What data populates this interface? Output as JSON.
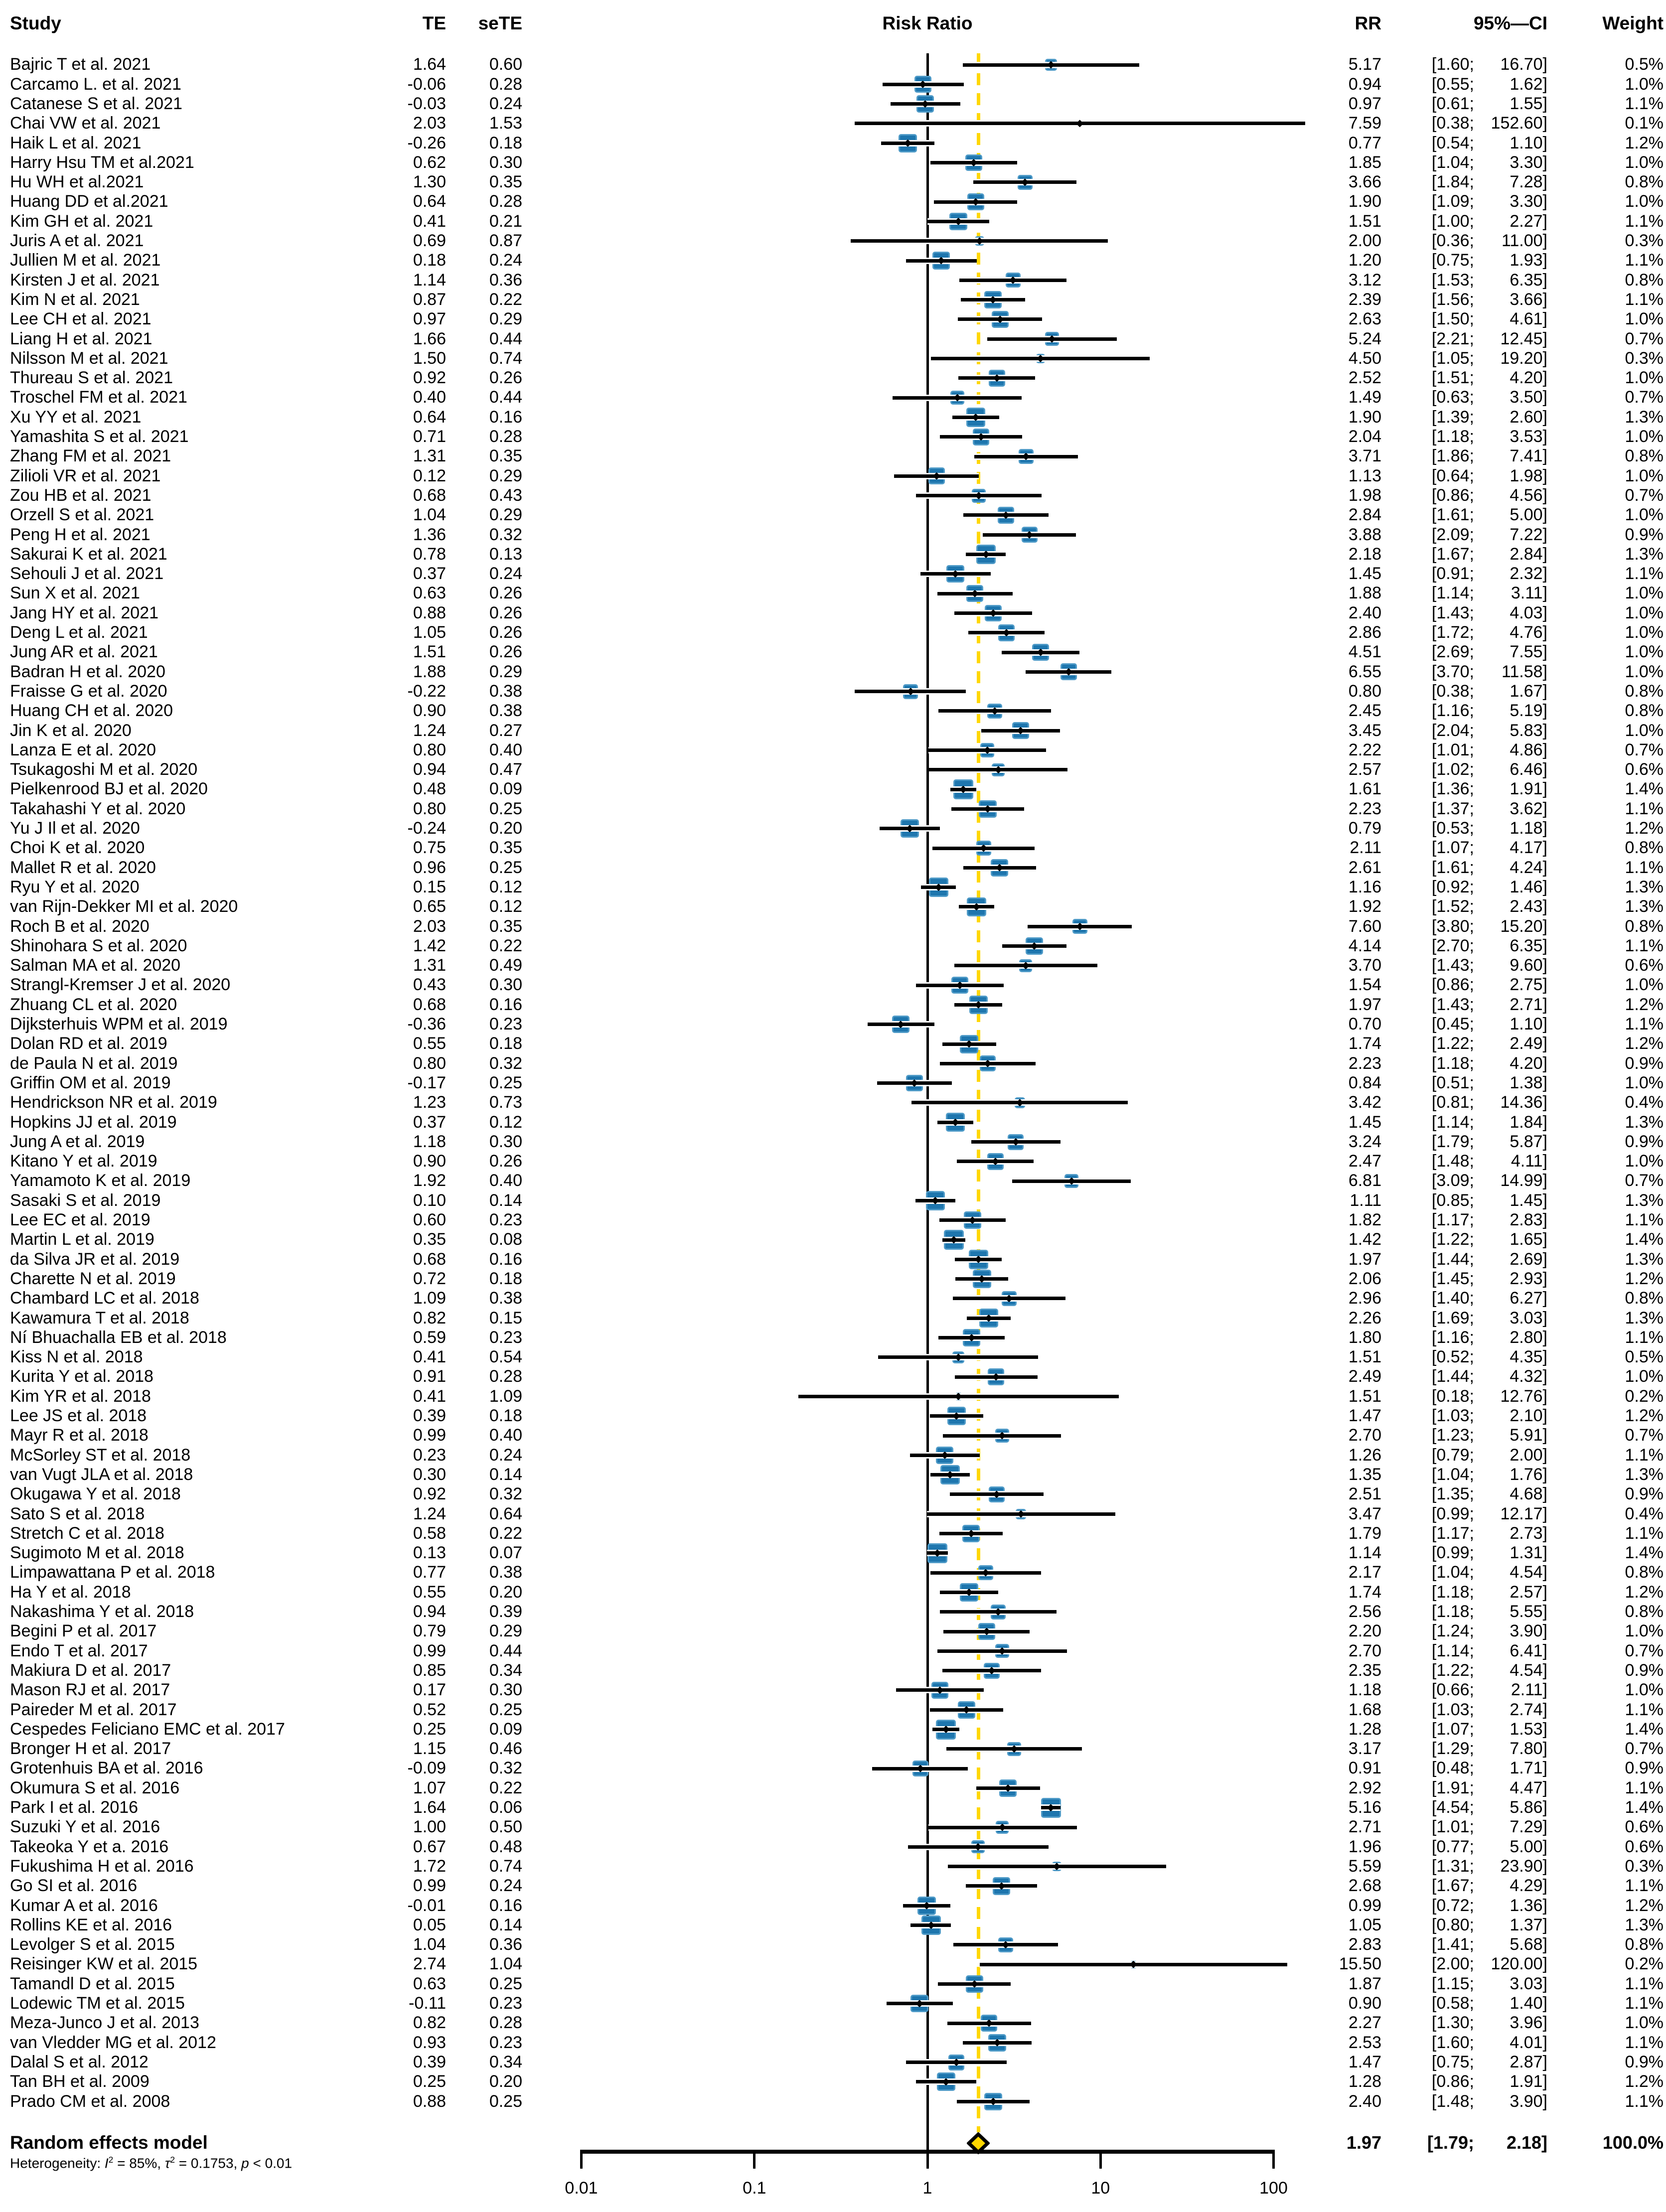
{
  "header": {
    "study": "Study",
    "te": "TE",
    "sete": "seTE",
    "plot": "Risk Ratio",
    "rr": "RR",
    "ci": "95%—CI",
    "weight": "Weight"
  },
  "summary": {
    "label": "Random effects model",
    "rr": "1.97",
    "ci_low": 1.79,
    "ci_high": 2.18,
    "weight": "100.0%",
    "rr_value": 1.97
  },
  "heterogeneity": [
    {
      "t": "Heterogeneity: "
    },
    {
      "t": "I",
      "i": true
    },
    {
      "t": "2",
      "s": true
    },
    {
      "t": " = 85%, "
    },
    {
      "t": "τ",
      "i": true
    },
    {
      "t": "2",
      "s": true
    },
    {
      "t": " = 0.1753, "
    },
    {
      "t": "p",
      "i": true
    },
    {
      "t": " < 0.01"
    }
  ],
  "colors": {
    "square": "#1E76AE",
    "square_border": "#4E9AC7",
    "ci_line": "#000000",
    "ref_line": "#000000",
    "pooled_line": "#FFD700",
    "diamond_fill": "#FFD700",
    "diamond_stroke": "#000000"
  },
  "chart_data": {
    "type": "forest",
    "title": "Risk Ratio",
    "x_axis": {
      "scale": "log10",
      "ticks": [
        0.01,
        0.1,
        1,
        10,
        100
      ],
      "tick_labels": [
        "0.01",
        "0.1",
        "1",
        "10",
        "100"
      ],
      "reference_value": 1,
      "pooled_value": 1.97
    },
    "studies": [
      {
        "n": "Bajric T et al. 2021",
        "te": 1.64,
        "se": 0.6,
        "rr": 5.17,
        "lo": 1.6,
        "hi": 16.7,
        "w": 0.5
      },
      {
        "n": "Carcamo L. et al. 2021",
        "te": -0.06,
        "se": 0.28,
        "rr": 0.94,
        "lo": 0.55,
        "hi": 1.62,
        "w": 1.0
      },
      {
        "n": "Catanese S et al. 2021",
        "te": -0.03,
        "se": 0.24,
        "rr": 0.97,
        "lo": 0.61,
        "hi": 1.55,
        "w": 1.1
      },
      {
        "n": "Chai VW et al. 2021",
        "te": 2.03,
        "se": 1.53,
        "rr": 7.59,
        "lo": 0.38,
        "hi": 152.6,
        "w": 0.1
      },
      {
        "n": "Haik L et al. 2021",
        "te": -0.26,
        "se": 0.18,
        "rr": 0.77,
        "lo": 0.54,
        "hi": 1.1,
        "w": 1.2
      },
      {
        "n": "Harry Hsu TM et al.2021",
        "te": 0.62,
        "se": 0.3,
        "rr": 1.85,
        "lo": 1.04,
        "hi": 3.3,
        "w": 1.0
      },
      {
        "n": "Hu WH et al.2021",
        "te": 1.3,
        "se": 0.35,
        "rr": 3.66,
        "lo": 1.84,
        "hi": 7.28,
        "w": 0.8
      },
      {
        "n": "Huang DD et al.2021",
        "te": 0.64,
        "se": 0.28,
        "rr": 1.9,
        "lo": 1.09,
        "hi": 3.3,
        "w": 1.0
      },
      {
        "n": "Kim GH et al. 2021",
        "te": 0.41,
        "se": 0.21,
        "rr": 1.51,
        "lo": 1.0,
        "hi": 2.27,
        "w": 1.1
      },
      {
        "n": "Juris A et al. 2021",
        "te": 0.69,
        "se": 0.87,
        "rr": 2.0,
        "lo": 0.36,
        "hi": 11.0,
        "w": 0.3
      },
      {
        "n": "Jullien M et al. 2021",
        "te": 0.18,
        "se": 0.24,
        "rr": 1.2,
        "lo": 0.75,
        "hi": 1.93,
        "w": 1.1
      },
      {
        "n": "Kirsten J et al. 2021",
        "te": 1.14,
        "se": 0.36,
        "rr": 3.12,
        "lo": 1.53,
        "hi": 6.35,
        "w": 0.8
      },
      {
        "n": "Kim N et al. 2021",
        "te": 0.87,
        "se": 0.22,
        "rr": 2.39,
        "lo": 1.56,
        "hi": 3.66,
        "w": 1.1
      },
      {
        "n": "Lee CH et al. 2021",
        "te": 0.97,
        "se": 0.29,
        "rr": 2.63,
        "lo": 1.5,
        "hi": 4.61,
        "w": 1.0
      },
      {
        "n": "Liang H et al. 2021",
        "te": 1.66,
        "se": 0.44,
        "rr": 5.24,
        "lo": 2.21,
        "hi": 12.45,
        "w": 0.7
      },
      {
        "n": "Nilsson M et al. 2021",
        "te": 1.5,
        "se": 0.74,
        "rr": 4.5,
        "lo": 1.05,
        "hi": 19.2,
        "w": 0.3
      },
      {
        "n": "Thureau S et al. 2021",
        "te": 0.92,
        "se": 0.26,
        "rr": 2.52,
        "lo": 1.51,
        "hi": 4.2,
        "w": 1.0
      },
      {
        "n": "Troschel FM et al. 2021",
        "te": 0.4,
        "se": 0.44,
        "rr": 1.49,
        "lo": 0.63,
        "hi": 3.5,
        "w": 0.7
      },
      {
        "n": "Xu YY et al. 2021",
        "te": 0.64,
        "se": 0.16,
        "rr": 1.9,
        "lo": 1.39,
        "hi": 2.6,
        "w": 1.3
      },
      {
        "n": "Yamashita S et al. 2021",
        "te": 0.71,
        "se": 0.28,
        "rr": 2.04,
        "lo": 1.18,
        "hi": 3.53,
        "w": 1.0
      },
      {
        "n": "Zhang FM et al. 2021",
        "te": 1.31,
        "se": 0.35,
        "rr": 3.71,
        "lo": 1.86,
        "hi": 7.41,
        "w": 0.8
      },
      {
        "n": "Zilioli VR et al. 2021",
        "te": 0.12,
        "se": 0.29,
        "rr": 1.13,
        "lo": 0.64,
        "hi": 1.98,
        "w": 1.0
      },
      {
        "n": "Zou HB et al. 2021",
        "te": 0.68,
        "se": 0.43,
        "rr": 1.98,
        "lo": 0.86,
        "hi": 4.56,
        "w": 0.7
      },
      {
        "n": "Orzell S et al. 2021",
        "te": 1.04,
        "se": 0.29,
        "rr": 2.84,
        "lo": 1.61,
        "hi": 5.0,
        "w": 1.0
      },
      {
        "n": "Peng H et al. 2021",
        "te": 1.36,
        "se": 0.32,
        "rr": 3.88,
        "lo": 2.09,
        "hi": 7.22,
        "w": 0.9
      },
      {
        "n": "Sakurai K et al. 2021",
        "te": 0.78,
        "se": 0.13,
        "rr": 2.18,
        "lo": 1.67,
        "hi": 2.84,
        "w": 1.3
      },
      {
        "n": "Sehouli J et al. 2021",
        "te": 0.37,
        "se": 0.24,
        "rr": 1.45,
        "lo": 0.91,
        "hi": 2.32,
        "w": 1.1
      },
      {
        "n": "Sun X et al. 2021",
        "te": 0.63,
        "se": 0.26,
        "rr": 1.88,
        "lo": 1.14,
        "hi": 3.11,
        "w": 1.0
      },
      {
        "n": "Jang HY et al. 2021",
        "te": 0.88,
        "se": 0.26,
        "rr": 2.4,
        "lo": 1.43,
        "hi": 4.03,
        "w": 1.0
      },
      {
        "n": "Deng L et al. 2021",
        "te": 1.05,
        "se": 0.26,
        "rr": 2.86,
        "lo": 1.72,
        "hi": 4.76,
        "w": 1.0
      },
      {
        "n": "Jung AR et al. 2021",
        "te": 1.51,
        "se": 0.26,
        "rr": 4.51,
        "lo": 2.69,
        "hi": 7.55,
        "w": 1.0
      },
      {
        "n": "Badran H et al. 2020",
        "te": 1.88,
        "se": 0.29,
        "rr": 6.55,
        "lo": 3.7,
        "hi": 11.58,
        "w": 1.0
      },
      {
        "n": "Fraisse G et al. 2020",
        "te": -0.22,
        "se": 0.38,
        "rr": 0.8,
        "lo": 0.38,
        "hi": 1.67,
        "w": 0.8
      },
      {
        "n": "Huang CH et al. 2020",
        "te": 0.9,
        "se": 0.38,
        "rr": 2.45,
        "lo": 1.16,
        "hi": 5.19,
        "w": 0.8
      },
      {
        "n": "Jin K et al. 2020",
        "te": 1.24,
        "se": 0.27,
        "rr": 3.45,
        "lo": 2.04,
        "hi": 5.83,
        "w": 1.0
      },
      {
        "n": "Lanza E et al. 2020",
        "te": 0.8,
        "se": 0.4,
        "rr": 2.22,
        "lo": 1.01,
        "hi": 4.86,
        "w": 0.7
      },
      {
        "n": "Tsukagoshi M et al. 2020",
        "te": 0.94,
        "se": 0.47,
        "rr": 2.57,
        "lo": 1.02,
        "hi": 6.46,
        "w": 0.6
      },
      {
        "n": "Pielkenrood BJ et al. 2020",
        "te": 0.48,
        "se": 0.09,
        "rr": 1.61,
        "lo": 1.36,
        "hi": 1.91,
        "w": 1.4
      },
      {
        "n": "Takahashi Y et al. 2020",
        "te": 0.8,
        "se": 0.25,
        "rr": 2.23,
        "lo": 1.37,
        "hi": 3.62,
        "w": 1.1
      },
      {
        "n": "Yu J Il et al. 2020",
        "te": -0.24,
        "se": 0.2,
        "rr": 0.79,
        "lo": 0.53,
        "hi": 1.18,
        "w": 1.2
      },
      {
        "n": "Choi K et al. 2020",
        "te": 0.75,
        "se": 0.35,
        "rr": 2.11,
        "lo": 1.07,
        "hi": 4.17,
        "w": 0.8
      },
      {
        "n": "Mallet R et al. 2020",
        "te": 0.96,
        "se": 0.25,
        "rr": 2.61,
        "lo": 1.61,
        "hi": 4.24,
        "w": 1.1
      },
      {
        "n": "Ryu Y et al. 2020",
        "te": 0.15,
        "se": 0.12,
        "rr": 1.16,
        "lo": 0.92,
        "hi": 1.46,
        "w": 1.3
      },
      {
        "n": "van Rijn-Dekker MI et al. 2020",
        "te": 0.65,
        "se": 0.12,
        "rr": 1.92,
        "lo": 1.52,
        "hi": 2.43,
        "w": 1.3
      },
      {
        "n": "Roch B et al. 2020",
        "te": 2.03,
        "se": 0.35,
        "rr": 7.6,
        "lo": 3.8,
        "hi": 15.2,
        "w": 0.8
      },
      {
        "n": "Shinohara S et al. 2020",
        "te": 1.42,
        "se": 0.22,
        "rr": 4.14,
        "lo": 2.7,
        "hi": 6.35,
        "w": 1.1
      },
      {
        "n": "Salman MA et al. 2020",
        "te": 1.31,
        "se": 0.49,
        "rr": 3.7,
        "lo": 1.43,
        "hi": 9.6,
        "w": 0.6
      },
      {
        "n": "Strangl-Kremser J et al. 2020",
        "te": 0.43,
        "se": 0.3,
        "rr": 1.54,
        "lo": 0.86,
        "hi": 2.75,
        "w": 1.0
      },
      {
        "n": "Zhuang CL et al. 2020",
        "te": 0.68,
        "se": 0.16,
        "rr": 1.97,
        "lo": 1.43,
        "hi": 2.71,
        "w": 1.2
      },
      {
        "n": "Dijksterhuis WPM et al. 2019",
        "te": -0.36,
        "se": 0.23,
        "rr": 0.7,
        "lo": 0.45,
        "hi": 1.1,
        "w": 1.1
      },
      {
        "n": "Dolan RD et al. 2019",
        "te": 0.55,
        "se": 0.18,
        "rr": 1.74,
        "lo": 1.22,
        "hi": 2.49,
        "w": 1.2
      },
      {
        "n": "de Paula N et al. 2019",
        "te": 0.8,
        "se": 0.32,
        "rr": 2.23,
        "lo": 1.18,
        "hi": 4.2,
        "w": 0.9
      },
      {
        "n": "Griffin OM et al. 2019",
        "te": -0.17,
        "se": 0.25,
        "rr": 0.84,
        "lo": 0.51,
        "hi": 1.38,
        "w": 1.0
      },
      {
        "n": "Hendrickson NR et al. 2019",
        "te": 1.23,
        "se": 0.73,
        "rr": 3.42,
        "lo": 0.81,
        "hi": 14.36,
        "w": 0.4
      },
      {
        "n": "Hopkins JJ et al. 2019",
        "te": 0.37,
        "se": 0.12,
        "rr": 1.45,
        "lo": 1.14,
        "hi": 1.84,
        "w": 1.3
      },
      {
        "n": "Jung A et al. 2019",
        "te": 1.18,
        "se": 0.3,
        "rr": 3.24,
        "lo": 1.79,
        "hi": 5.87,
        "w": 0.9
      },
      {
        "n": "Kitano Y et al. 2019",
        "te": 0.9,
        "se": 0.26,
        "rr": 2.47,
        "lo": 1.48,
        "hi": 4.11,
        "w": 1.0
      },
      {
        "n": "Yamamoto K et al. 2019",
        "te": 1.92,
        "se": 0.4,
        "rr": 6.81,
        "lo": 3.09,
        "hi": 14.99,
        "w": 0.7
      },
      {
        "n": "Sasaki S et al. 2019",
        "te": 0.1,
        "se": 0.14,
        "rr": 1.11,
        "lo": 0.85,
        "hi": 1.45,
        "w": 1.3
      },
      {
        "n": "Lee EC et al. 2019",
        "te": 0.6,
        "se": 0.23,
        "rr": 1.82,
        "lo": 1.17,
        "hi": 2.83,
        "w": 1.1
      },
      {
        "n": "Martin L et al. 2019",
        "te": 0.35,
        "se": 0.08,
        "rr": 1.42,
        "lo": 1.22,
        "hi": 1.65,
        "w": 1.4
      },
      {
        "n": "da Silva JR et al. 2019",
        "te": 0.68,
        "se": 0.16,
        "rr": 1.97,
        "lo": 1.44,
        "hi": 2.69,
        "w": 1.3
      },
      {
        "n": "Charette N et al. 2019",
        "te": 0.72,
        "se": 0.18,
        "rr": 2.06,
        "lo": 1.45,
        "hi": 2.93,
        "w": 1.2
      },
      {
        "n": "Chambard LC et al. 2018",
        "te": 1.09,
        "se": 0.38,
        "rr": 2.96,
        "lo": 1.4,
        "hi": 6.27,
        "w": 0.8
      },
      {
        "n": "Kawamura T et al. 2018",
        "te": 0.82,
        "se": 0.15,
        "rr": 2.26,
        "lo": 1.69,
        "hi": 3.03,
        "w": 1.3
      },
      {
        "n": "Ní Bhuachalla EB et al. 2018",
        "te": 0.59,
        "se": 0.23,
        "rr": 1.8,
        "lo": 1.16,
        "hi": 2.8,
        "w": 1.1
      },
      {
        "n": "Kiss N et al. 2018",
        "te": 0.41,
        "se": 0.54,
        "rr": 1.51,
        "lo": 0.52,
        "hi": 4.35,
        "w": 0.5
      },
      {
        "n": "Kurita Y et al. 2018",
        "te": 0.91,
        "se": 0.28,
        "rr": 2.49,
        "lo": 1.44,
        "hi": 4.32,
        "w": 1.0
      },
      {
        "n": "Kim YR et al. 2018",
        "te": 0.41,
        "se": 1.09,
        "rr": 1.51,
        "lo": 0.18,
        "hi": 12.76,
        "w": 0.2
      },
      {
        "n": "Lee JS et al. 2018",
        "te": 0.39,
        "se": 0.18,
        "rr": 1.47,
        "lo": 1.03,
        "hi": 2.1,
        "w": 1.2
      },
      {
        "n": "Mayr R et al. 2018",
        "te": 0.99,
        "se": 0.4,
        "rr": 2.7,
        "lo": 1.23,
        "hi": 5.91,
        "w": 0.7
      },
      {
        "n": "McSorley ST et al. 2018",
        "te": 0.23,
        "se": 0.24,
        "rr": 1.26,
        "lo": 0.79,
        "hi": 2.0,
        "w": 1.1
      },
      {
        "n": "van Vugt JLA et al. 2018",
        "te": 0.3,
        "se": 0.14,
        "rr": 1.35,
        "lo": 1.04,
        "hi": 1.76,
        "w": 1.3
      },
      {
        "n": "Okugawa Y et al. 2018",
        "te": 0.92,
        "se": 0.32,
        "rr": 2.51,
        "lo": 1.35,
        "hi": 4.68,
        "w": 0.9
      },
      {
        "n": "Sato S et al. 2018",
        "te": 1.24,
        "se": 0.64,
        "rr": 3.47,
        "lo": 0.99,
        "hi": 12.17,
        "w": 0.4
      },
      {
        "n": "Stretch C et al. 2018",
        "te": 0.58,
        "se": 0.22,
        "rr": 1.79,
        "lo": 1.17,
        "hi": 2.73,
        "w": 1.1
      },
      {
        "n": "Sugimoto M et al. 2018",
        "te": 0.13,
        "se": 0.07,
        "rr": 1.14,
        "lo": 0.99,
        "hi": 1.31,
        "w": 1.4
      },
      {
        "n": "Limpawattana P et al. 2018",
        "te": 0.77,
        "se": 0.38,
        "rr": 2.17,
        "lo": 1.04,
        "hi": 4.54,
        "w": 0.8
      },
      {
        "n": "Ha Y et al. 2018",
        "te": 0.55,
        "se": 0.2,
        "rr": 1.74,
        "lo": 1.18,
        "hi": 2.57,
        "w": 1.2
      },
      {
        "n": "Nakashima Y et al. 2018",
        "te": 0.94,
        "se": 0.39,
        "rr": 2.56,
        "lo": 1.18,
        "hi": 5.55,
        "w": 0.8
      },
      {
        "n": "Begini P et al. 2017",
        "te": 0.79,
        "se": 0.29,
        "rr": 2.2,
        "lo": 1.24,
        "hi": 3.9,
        "w": 1.0
      },
      {
        "n": "Endo T et al. 2017",
        "te": 0.99,
        "se": 0.44,
        "rr": 2.7,
        "lo": 1.14,
        "hi": 6.41,
        "w": 0.7
      },
      {
        "n": "Makiura D et al. 2017",
        "te": 0.85,
        "se": 0.34,
        "rr": 2.35,
        "lo": 1.22,
        "hi": 4.54,
        "w": 0.9
      },
      {
        "n": "Mason RJ et al. 2017",
        "te": 0.17,
        "se": 0.3,
        "rr": 1.18,
        "lo": 0.66,
        "hi": 2.11,
        "w": 1.0
      },
      {
        "n": "Paireder M et al. 2017",
        "te": 0.52,
        "se": 0.25,
        "rr": 1.68,
        "lo": 1.03,
        "hi": 2.74,
        "w": 1.1
      },
      {
        "n": "Cespedes Feliciano EMC et al. 2017",
        "te": 0.25,
        "se": 0.09,
        "rr": 1.28,
        "lo": 1.07,
        "hi": 1.53,
        "w": 1.4
      },
      {
        "n": "Bronger H et al. 2017",
        "te": 1.15,
        "se": 0.46,
        "rr": 3.17,
        "lo": 1.29,
        "hi": 7.8,
        "w": 0.7
      },
      {
        "n": "Grotenhuis BA et al. 2016",
        "te": -0.09,
        "se": 0.32,
        "rr": 0.91,
        "lo": 0.48,
        "hi": 1.71,
        "w": 0.9
      },
      {
        "n": "Okumura S et al. 2016",
        "te": 1.07,
        "se": 0.22,
        "rr": 2.92,
        "lo": 1.91,
        "hi": 4.47,
        "w": 1.1
      },
      {
        "n": "Park I et al. 2016",
        "te": 1.64,
        "se": 0.06,
        "rr": 5.16,
        "lo": 4.54,
        "hi": 5.86,
        "w": 1.4
      },
      {
        "n": "Suzuki Y et al. 2016",
        "te": 1.0,
        "se": 0.5,
        "rr": 2.71,
        "lo": 1.01,
        "hi": 7.29,
        "w": 0.6
      },
      {
        "n": "Takeoka Y et a. 2016",
        "te": 0.67,
        "se": 0.48,
        "rr": 1.96,
        "lo": 0.77,
        "hi": 5.0,
        "w": 0.6
      },
      {
        "n": "Fukushima H et al. 2016",
        "te": 1.72,
        "se": 0.74,
        "rr": 5.59,
        "lo": 1.31,
        "hi": 23.9,
        "w": 0.3
      },
      {
        "n": "Go SI et al. 2016",
        "te": 0.99,
        "se": 0.24,
        "rr": 2.68,
        "lo": 1.67,
        "hi": 4.29,
        "w": 1.1
      },
      {
        "n": "Kumar A et al. 2016",
        "te": -0.01,
        "se": 0.16,
        "rr": 0.99,
        "lo": 0.72,
        "hi": 1.36,
        "w": 1.2
      },
      {
        "n": "Rollins KE et al. 2016",
        "te": 0.05,
        "se": 0.14,
        "rr": 1.05,
        "lo": 0.8,
        "hi": 1.37,
        "w": 1.3
      },
      {
        "n": "Levolger S et al. 2015",
        "te": 1.04,
        "se": 0.36,
        "rr": 2.83,
        "lo": 1.41,
        "hi": 5.68,
        "w": 0.8
      },
      {
        "n": "Reisinger KW et al. 2015",
        "te": 2.74,
        "se": 1.04,
        "rr": 15.5,
        "lo": 2.0,
        "hi": 120.0,
        "w": 0.2
      },
      {
        "n": "Tamandl D et al. 2015",
        "te": 0.63,
        "se": 0.25,
        "rr": 1.87,
        "lo": 1.15,
        "hi": 3.03,
        "w": 1.1
      },
      {
        "n": "Lodewic TM et al. 2015",
        "te": -0.11,
        "se": 0.23,
        "rr": 0.9,
        "lo": 0.58,
        "hi": 1.4,
        "w": 1.1
      },
      {
        "n": "Meza-Junco J et al. 2013",
        "te": 0.82,
        "se": 0.28,
        "rr": 2.27,
        "lo": 1.3,
        "hi": 3.96,
        "w": 1.0
      },
      {
        "n": "van Vledder MG et al. 2012",
        "te": 0.93,
        "se": 0.23,
        "rr": 2.53,
        "lo": 1.6,
        "hi": 4.01,
        "w": 1.1
      },
      {
        "n": "Dalal S et al. 2012",
        "te": 0.39,
        "se": 0.34,
        "rr": 1.47,
        "lo": 0.75,
        "hi": 2.87,
        "w": 0.9
      },
      {
        "n": "Tan BH et al. 2009",
        "te": 0.25,
        "se": 0.2,
        "rr": 1.28,
        "lo": 0.86,
        "hi": 1.91,
        "w": 1.2
      },
      {
        "n": "Prado CM et al. 2008",
        "te": 0.88,
        "se": 0.25,
        "rr": 2.4,
        "lo": 1.48,
        "hi": 3.9,
        "w": 1.1
      }
    ],
    "summary": {
      "label": "Random effects model",
      "rr": 1.97,
      "lo": 1.79,
      "hi": 2.18,
      "weight_pct": 100.0
    }
  }
}
